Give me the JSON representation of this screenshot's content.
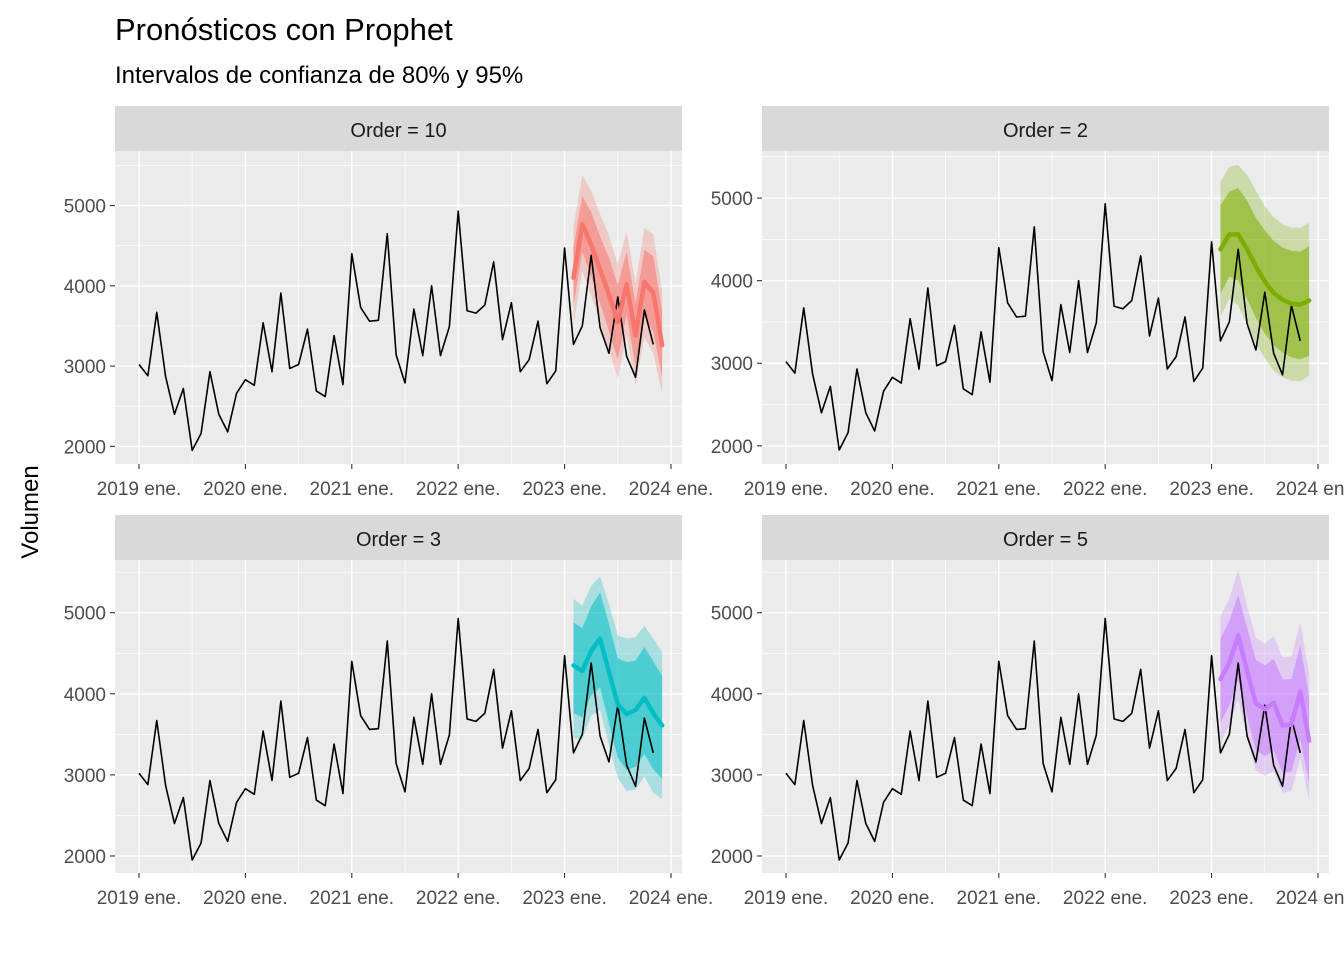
{
  "chart_data": {
    "type": "line",
    "title": "Pronósticos con Prophet",
    "subtitle": "Intervalos de confianza de 80% y 95%",
    "ylabel": "Volumen",
    "xlabel": "",
    "x_ticks": [
      "2019 ene.",
      "2020 ene.",
      "2021 ene.",
      "2022 ene.",
      "2023 ene.",
      "2024 ene."
    ],
    "y_ticks": [
      2000,
      3000,
      4000,
      5000
    ],
    "grid": true,
    "colors": {
      "panel_bg": "#ebebeb",
      "strip_bg": "#d9d9d9",
      "grid": "#ffffff",
      "actual_line": "#000000"
    },
    "actual": {
      "x": [
        "2019-01",
        "2019-02",
        "2019-03",
        "2019-04",
        "2019-05",
        "2019-06",
        "2019-07",
        "2019-08",
        "2019-09",
        "2019-10",
        "2019-11",
        "2019-12",
        "2020-01",
        "2020-02",
        "2020-03",
        "2020-04",
        "2020-05",
        "2020-06",
        "2020-07",
        "2020-08",
        "2020-09",
        "2020-10",
        "2020-11",
        "2020-12",
        "2021-01",
        "2021-02",
        "2021-03",
        "2021-04",
        "2021-05",
        "2021-06",
        "2021-07",
        "2021-08",
        "2021-09",
        "2021-10",
        "2021-11",
        "2021-12",
        "2022-01",
        "2022-02",
        "2022-03",
        "2022-04",
        "2022-05",
        "2022-06",
        "2022-07",
        "2022-08",
        "2022-09",
        "2022-10",
        "2022-11",
        "2022-12",
        "2023-01",
        "2023-02",
        "2023-03",
        "2023-04",
        "2023-05",
        "2023-06",
        "2023-07",
        "2023-08",
        "2023-09",
        "2023-10",
        "2023-11",
        "2023-12"
      ],
      "values": [
        3020,
        2880,
        3670,
        2870,
        2400,
        2720,
        1950,
        2160,
        2930,
        2400,
        2180,
        2660,
        2830,
        2760,
        3540,
        2930,
        3910,
        2970,
        3020,
        3460,
        2690,
        2620,
        3380,
        2770,
        4400,
        3730,
        3560,
        3570,
        4650,
        3140,
        2790,
        3710,
        3130,
        4000,
        3130,
        3490,
        4930,
        3690,
        3660,
        3760,
        4300,
        3330,
        3790,
        2930,
        3080,
        3560,
        2780,
        2940,
        4470,
        3270,
        3500,
        4380,
        3480,
        3160,
        3860,
        3120,
        2860,
        3700,
        3270,
        null
      ]
    },
    "panels": [
      {
        "name": "Order = 10",
        "color": "#f8766d",
        "forecast": {
          "x": [
            "2023-02",
            "2023-03",
            "2023-04",
            "2023-05",
            "2023-06",
            "2023-07",
            "2023-08",
            "2023-09",
            "2023-10",
            "2023-11",
            "2023-12"
          ],
          "values": [
            4100,
            4770,
            4510,
            4200,
            3890,
            3550,
            4020,
            3380,
            4050,
            3910,
            3260
          ],
          "lo80": [
            3750,
            4420,
            4120,
            3780,
            3440,
            3080,
            3640,
            3000,
            3620,
            3430,
            2860
          ],
          "hi80": [
            4480,
            5120,
            4920,
            4620,
            4350,
            4010,
            4420,
            3780,
            4450,
            4370,
            3680
          ],
          "lo95": [
            3520,
            4180,
            3880,
            3540,
            3190,
            2850,
            3380,
            2760,
            3360,
            3160,
            2650
          ],
          "hi95": [
            4740,
            5380,
            5180,
            4890,
            4630,
            4270,
            4670,
            4030,
            4720,
            4640,
            3930
          ]
        }
      },
      {
        "name": "Order = 2",
        "color": "#7cae00",
        "forecast": {
          "x": [
            "2023-02",
            "2023-03",
            "2023-04",
            "2023-05",
            "2023-06",
            "2023-07",
            "2023-08",
            "2023-09",
            "2023-10",
            "2023-11",
            "2023-12"
          ],
          "values": [
            4380,
            4560,
            4560,
            4380,
            4170,
            3990,
            3850,
            3770,
            3720,
            3710,
            3760
          ],
          "lo80": [
            3840,
            4050,
            4000,
            3780,
            3550,
            3360,
            3220,
            3130,
            3070,
            3050,
            3090
          ],
          "hi80": [
            4910,
            5080,
            5120,
            4970,
            4760,
            4610,
            4480,
            4400,
            4360,
            4350,
            4420
          ],
          "lo95": [
            3560,
            3780,
            3700,
            3470,
            3240,
            3060,
            2910,
            2830,
            2790,
            2780,
            2850
          ],
          "hi95": [
            5200,
            5380,
            5400,
            5280,
            5090,
            4900,
            4770,
            4680,
            4640,
            4640,
            4700
          ]
        }
      },
      {
        "name": "Order = 3",
        "color": "#00bfc4",
        "forecast": {
          "x": [
            "2023-02",
            "2023-03",
            "2023-04",
            "2023-05",
            "2023-06",
            "2023-07",
            "2023-08",
            "2023-09",
            "2023-10",
            "2023-11",
            "2023-12"
          ],
          "values": [
            4350,
            4280,
            4530,
            4680,
            4270,
            3870,
            3750,
            3800,
            3950,
            3760,
            3610
          ],
          "lo80": [
            3760,
            3710,
            3980,
            4080,
            3640,
            3210,
            3060,
            3100,
            3260,
            3070,
            2950
          ],
          "hi80": [
            4880,
            4810,
            5080,
            5250,
            4860,
            4440,
            4390,
            4410,
            4580,
            4400,
            4220
          ],
          "lo95": [
            3450,
            3440,
            3730,
            3800,
            3370,
            2960,
            2800,
            2820,
            2980,
            2780,
            2700
          ],
          "hi95": [
            5170,
            5090,
            5330,
            5450,
            5110,
            4720,
            4680,
            4700,
            4840,
            4680,
            4510
          ]
        }
      },
      {
        "name": "Order = 5",
        "color": "#c77cff",
        "forecast": {
          "x": [
            "2023-02",
            "2023-03",
            "2023-04",
            "2023-05",
            "2023-06",
            "2023-07",
            "2023-08",
            "2023-09",
            "2023-10",
            "2023-11",
            "2023-12"
          ],
          "values": [
            4180,
            4380,
            4720,
            4280,
            3880,
            3810,
            3890,
            3610,
            3620,
            4030,
            3420
          ],
          "lo80": [
            3640,
            3860,
            4180,
            3720,
            3300,
            3230,
            3300,
            3030,
            3040,
            3440,
            2900
          ],
          "hi80": [
            4680,
            4900,
            5220,
            4810,
            4420,
            4350,
            4430,
            4180,
            4180,
            4600,
            3970
          ],
          "lo95": [
            3400,
            3610,
            3930,
            3460,
            3050,
            2990,
            3040,
            2780,
            2800,
            3200,
            2700
          ],
          "hi95": [
            4960,
            5170,
            5530,
            5080,
            4690,
            4620,
            4710,
            4450,
            4460,
            4880,
            4250
          ]
        }
      }
    ]
  }
}
